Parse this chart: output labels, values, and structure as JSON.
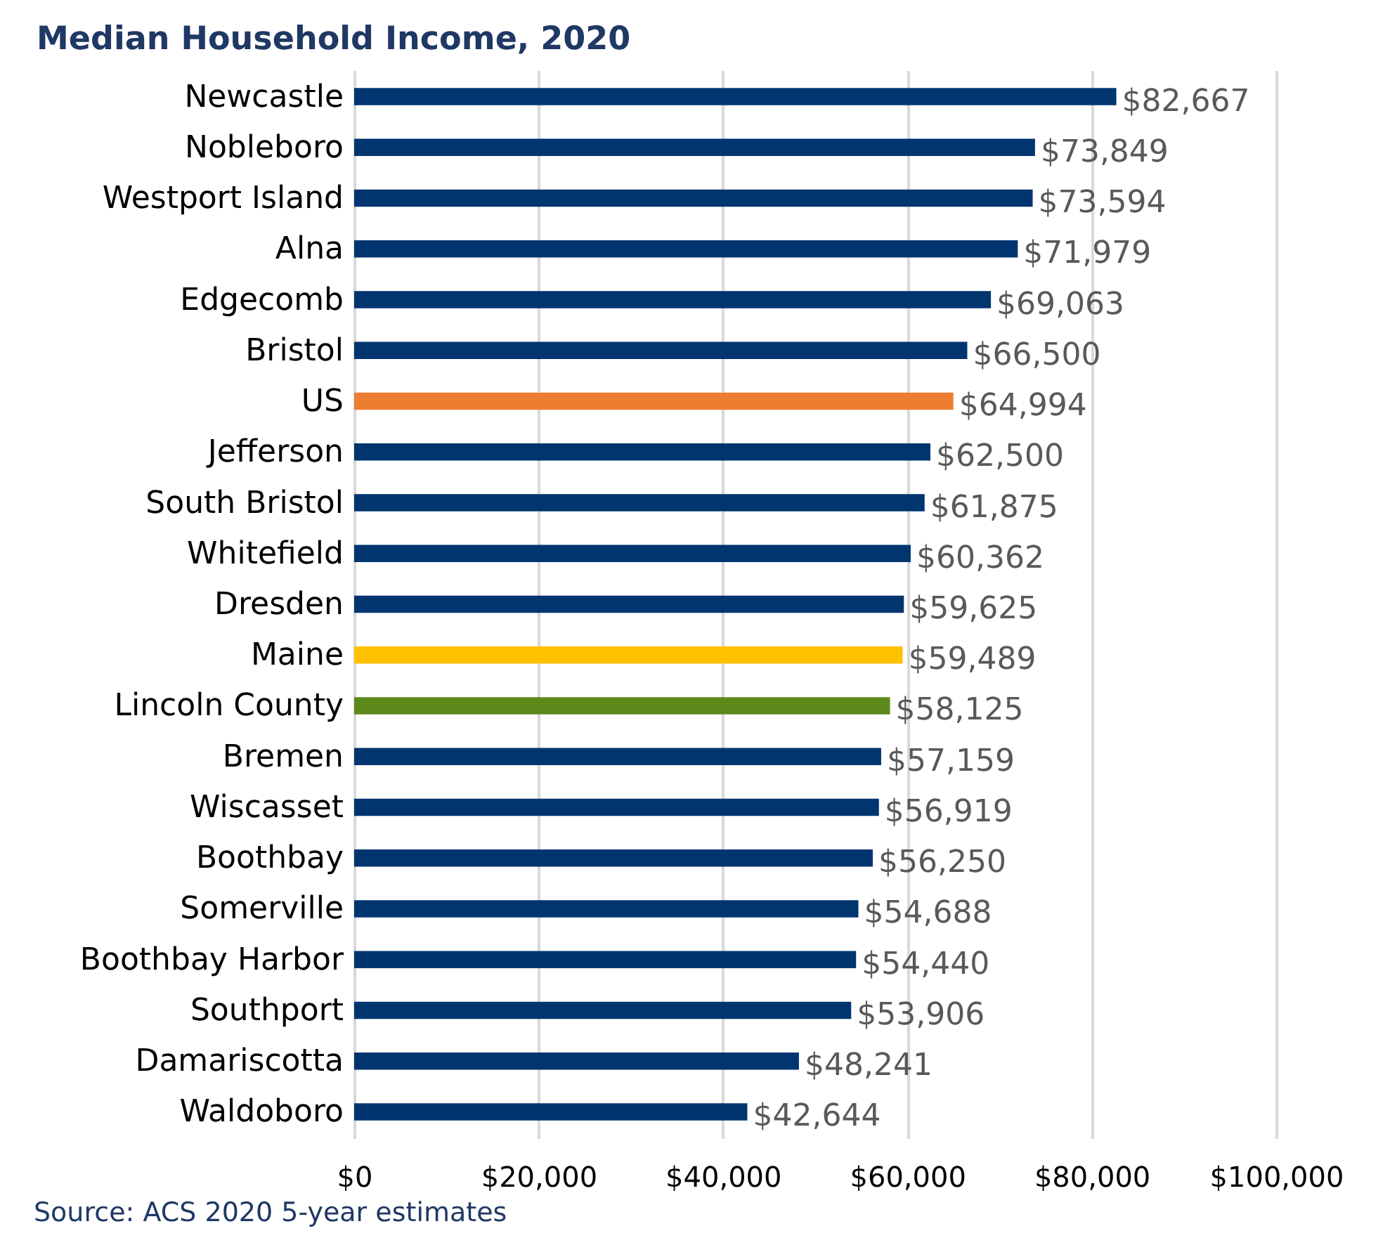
{
  "chart_data": {
    "type": "bar",
    "orientation": "horizontal",
    "title": "Median Household Income, 2020",
    "categories": [
      "Newcastle",
      "Nobleboro",
      "Westport Island",
      "Alna",
      "Edgecomb",
      "Bristol",
      "US",
      "Jefferson",
      "South Bristol",
      "Whitefield",
      "Dresden",
      "Maine",
      "Lincoln County",
      "Bremen",
      "Wiscasset",
      "Boothbay",
      "Somerville",
      "Boothbay Harbor",
      "Southport",
      "Damariscotta",
      "Waldoboro"
    ],
    "values": [
      82667,
      73849,
      73594,
      71979,
      69063,
      66500,
      64994,
      62500,
      61875,
      60362,
      59625,
      59489,
      58125,
      57159,
      56919,
      56250,
      54688,
      54440,
      53906,
      48241,
      42644
    ],
    "value_labels": [
      "$82,667",
      "$73,849",
      "$73,594",
      "$71,979",
      "$69,063",
      "$66,500",
      "$64,994",
      "$62,500",
      "$61,875",
      "$60,362",
      "$59,625",
      "$59,489",
      "$58,125",
      "$57,159",
      "$56,919",
      "$56,250",
      "$54,688",
      "$54,440",
      "$53,906",
      "$48,241",
      "$42,644"
    ],
    "colors": [
      "#003570",
      "#003570",
      "#003570",
      "#003570",
      "#003570",
      "#003570",
      "#ed7d31",
      "#003570",
      "#003570",
      "#003570",
      "#003570",
      "#ffc000",
      "#5e8a1c",
      "#003570",
      "#003570",
      "#003570",
      "#003570",
      "#003570",
      "#003570",
      "#003570",
      "#003570"
    ],
    "xlim": [
      0,
      100000
    ],
    "xticks": [
      {
        "value": 0,
        "label": "$0"
      },
      {
        "value": 20000,
        "label": "$20,000"
      },
      {
        "value": 40000,
        "label": "$40,000"
      },
      {
        "value": 60000,
        "label": "$60,000"
      },
      {
        "value": 80000,
        "label": "$80,000"
      },
      {
        "value": 100000,
        "label": "$100,000"
      }
    ],
    "grid": "x",
    "annotations": [
      "Source: ACS 2020 5-year estimates"
    ]
  }
}
